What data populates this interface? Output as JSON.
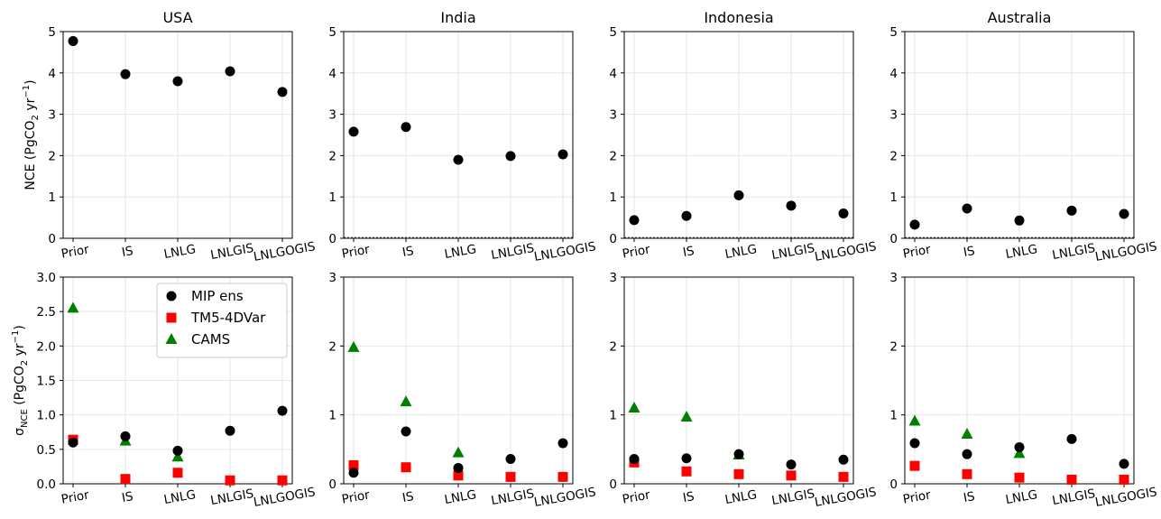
{
  "chart_data": {
    "type": "scatter",
    "categories": [
      "Prior",
      "IS",
      "LNLG",
      "LNLGIS",
      "LNLGOGIS"
    ],
    "panels": [
      {
        "row": "nce",
        "title": "USA",
        "ylim": [
          0,
          5
        ],
        "yticks": [
          "0",
          "1",
          "2",
          "3",
          "4",
          "5"
        ],
        "series": [
          {
            "name": "MIP ens",
            "values": [
              4.77,
              3.97,
              3.8,
              4.04,
              3.54
            ]
          }
        ]
      },
      {
        "row": "nce",
        "title": "India",
        "ylim": [
          0,
          5
        ],
        "yticks": [
          "0",
          "1",
          "2",
          "3",
          "4",
          "5"
        ],
        "series": [
          {
            "name": "MIP ens",
            "values": [
              2.58,
              2.69,
              1.9,
              1.99,
              2.03
            ]
          }
        ]
      },
      {
        "row": "nce",
        "title": "Indonesia",
        "ylim": [
          0,
          5
        ],
        "yticks": [
          "0",
          "1",
          "2",
          "3",
          "4",
          "5"
        ],
        "series": [
          {
            "name": "MIP ens",
            "values": [
              0.44,
              0.54,
              1.04,
              0.79,
              0.6
            ]
          }
        ]
      },
      {
        "row": "nce",
        "title": "Australia",
        "ylim": [
          0,
          5
        ],
        "yticks": [
          "0",
          "1",
          "2",
          "3",
          "4",
          "5"
        ],
        "series": [
          {
            "name": "MIP ens",
            "values": [
              0.33,
              0.72,
              0.43,
              0.67,
              0.59
            ]
          }
        ]
      },
      {
        "row": "sigma",
        "title": "",
        "ylim": [
          0,
          3
        ],
        "yticks": [
          "0.0",
          "0.5",
          "1.0",
          "1.5",
          "2.0",
          "2.5",
          "3.0"
        ],
        "series": [
          {
            "name": "MIP ens",
            "values": [
              0.6,
              0.69,
              0.48,
              0.77,
              1.06
            ]
          },
          {
            "name": "TM5-4DVar",
            "values": [
              0.64,
              0.07,
              0.16,
              0.05,
              0.05
            ]
          },
          {
            "name": "CAMS",
            "values": [
              2.55,
              0.62,
              0.39,
              null,
              null
            ]
          }
        ]
      },
      {
        "row": "sigma",
        "title": "",
        "ylim": [
          0,
          3
        ],
        "yticks": [
          "0",
          "1",
          "2",
          "3"
        ],
        "series": [
          {
            "name": "MIP ens",
            "values": [
              0.16,
              0.76,
              0.23,
              0.36,
              0.59
            ]
          },
          {
            "name": "TM5-4DVar",
            "values": [
              0.27,
              0.24,
              0.12,
              0.1,
              0.1
            ]
          },
          {
            "name": "CAMS",
            "values": [
              1.98,
              1.19,
              0.45,
              null,
              null
            ]
          }
        ]
      },
      {
        "row": "sigma",
        "title": "",
        "ylim": [
          0,
          3
        ],
        "yticks": [
          "0",
          "1",
          "2",
          "3"
        ],
        "series": [
          {
            "name": "MIP ens",
            "values": [
              0.36,
              0.37,
              0.43,
              0.28,
              0.35
            ]
          },
          {
            "name": "TM5-4DVar",
            "values": [
              0.31,
              0.18,
              0.14,
              0.12,
              0.1
            ]
          },
          {
            "name": "CAMS",
            "values": [
              1.1,
              0.97,
              0.42,
              null,
              null
            ]
          }
        ]
      },
      {
        "row": "sigma",
        "title": "",
        "ylim": [
          0,
          3
        ],
        "yticks": [
          "0",
          "1",
          "2",
          "3"
        ],
        "series": [
          {
            "name": "MIP ens",
            "values": [
              0.59,
              0.43,
              0.53,
              0.65,
              0.29
            ]
          },
          {
            "name": "TM5-4DVar",
            "values": [
              0.26,
              0.14,
              0.09,
              0.06,
              0.06
            ]
          },
          {
            "name": "CAMS",
            "values": [
              0.91,
              0.72,
              0.44,
              null,
              null
            ]
          }
        ]
      }
    ],
    "ylabel_top": "NCE (PgCO₂ yr⁻¹)",
    "ylabel_bottom": "σNCE (PgCO₂ yr⁻¹)",
    "legend": {
      "placement": "top-right of bottom-left panel",
      "entries": [
        {
          "name": "MIP ens",
          "marker": "circle",
          "color": "#000000"
        },
        {
          "name": "TM5-4DVar",
          "marker": "square",
          "color": "#ff0000"
        },
        {
          "name": "CAMS",
          "marker": "triangle",
          "color": "#008000"
        }
      ]
    },
    "grid": true
  }
}
